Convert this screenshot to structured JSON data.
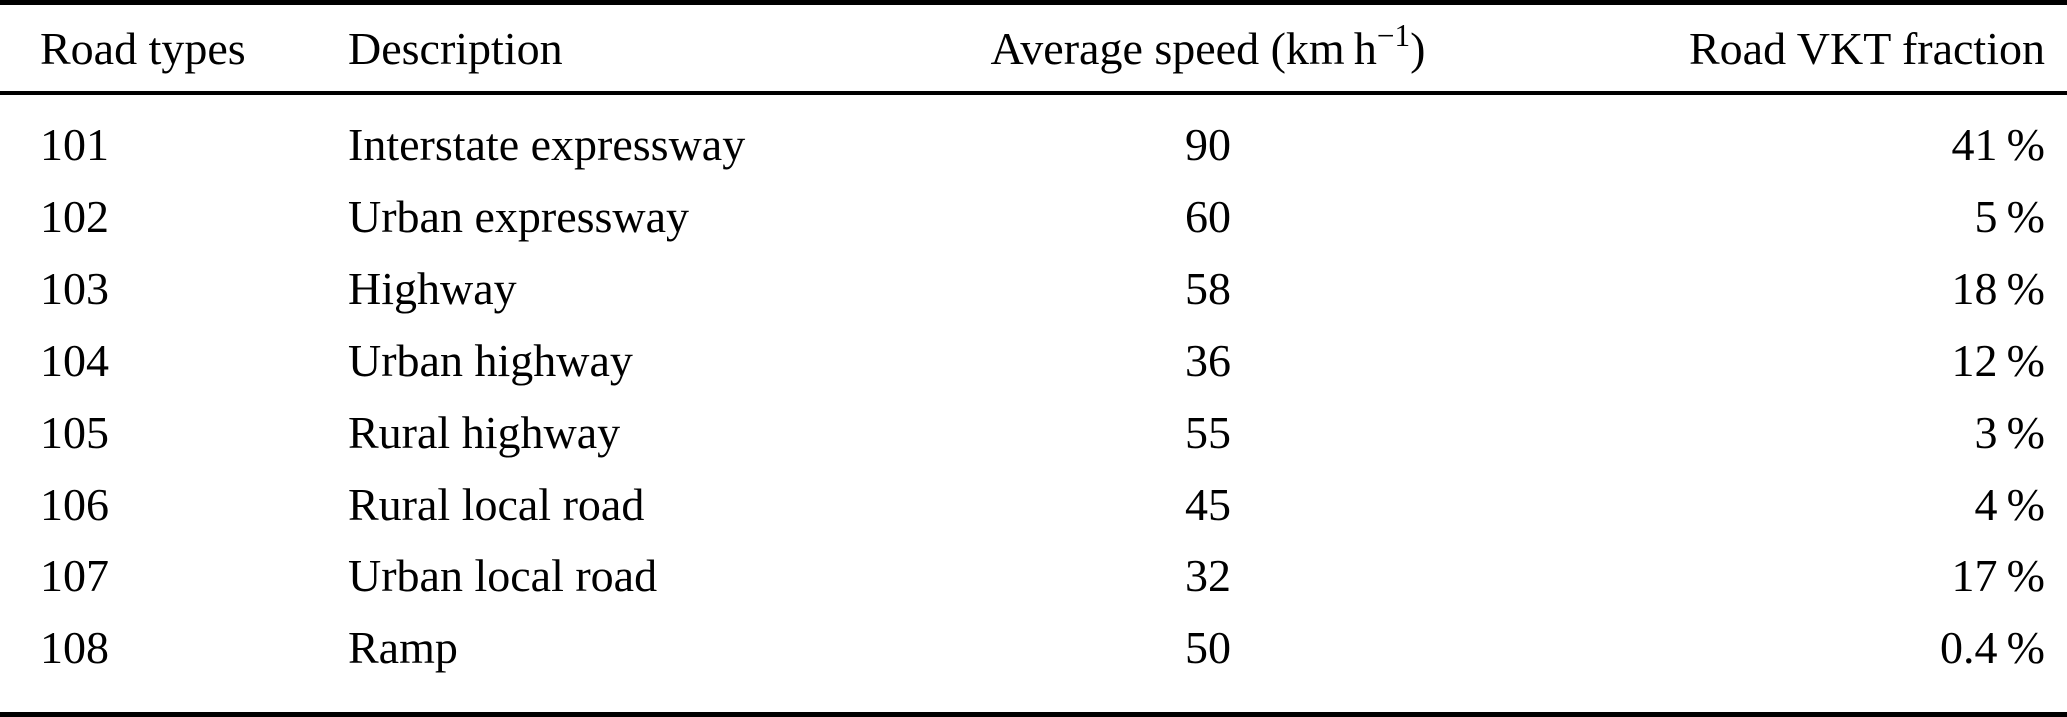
{
  "table": {
    "headers": {
      "road_type": "Road types",
      "description": "Description",
      "avg_speed_prefix": "Average speed (km h",
      "avg_speed_sup": "−1",
      "avg_speed_suffix": ")",
      "vkt_fraction": "Road VKT fraction"
    },
    "rows": [
      {
        "road_type": "101",
        "description": "Interstate expressway",
        "avg_speed": "90",
        "vkt_fraction": "41 %"
      },
      {
        "road_type": "102",
        "description": "Urban expressway",
        "avg_speed": "60",
        "vkt_fraction": "5 %"
      },
      {
        "road_type": "103",
        "description": "Highway",
        "avg_speed": "58",
        "vkt_fraction": "18 %"
      },
      {
        "road_type": "104",
        "description": "Urban highway",
        "avg_speed": "36",
        "vkt_fraction": "12 %"
      },
      {
        "road_type": "105",
        "description": "Rural highway",
        "avg_speed": "55",
        "vkt_fraction": "3 %"
      },
      {
        "road_type": "106",
        "description": "Rural local road",
        "avg_speed": "45",
        "vkt_fraction": "4 %"
      },
      {
        "road_type": "107",
        "description": "Urban local road",
        "avg_speed": "32",
        "vkt_fraction": "17 %"
      },
      {
        "road_type": "108",
        "description": "Ramp",
        "avg_speed": "50",
        "vkt_fraction": "0.4 %"
      }
    ]
  }
}
